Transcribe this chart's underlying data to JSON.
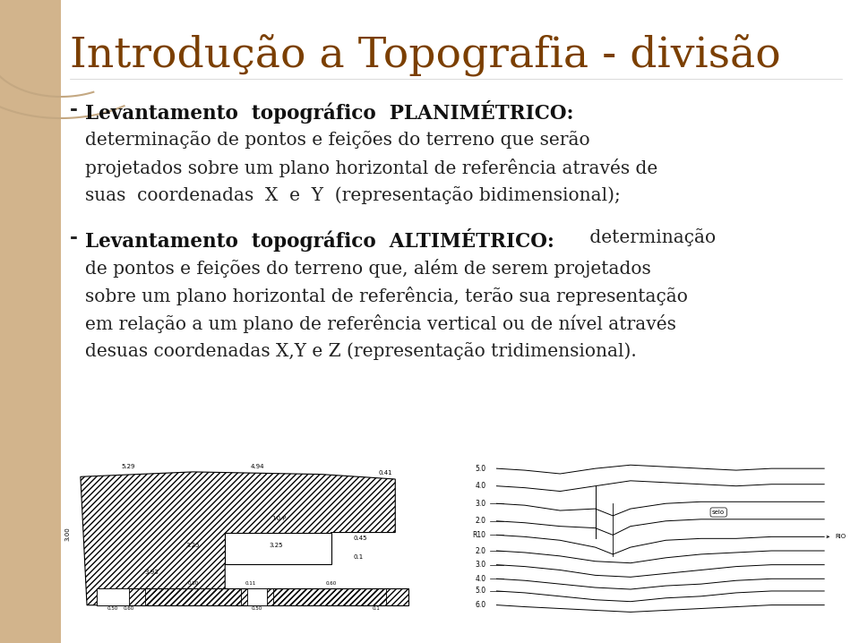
{
  "title": "Introdução a Topografia - divisão",
  "title_color": "#7B3F00",
  "title_fontsize": 34,
  "background_color": "#FFFFFF",
  "left_panel_color": "#D2B48C",
  "text_color": "#222222",
  "text_fontsize": 14.5,
  "bold_color": "#111111",
  "bullet1_bold": "Levantamento  topográfico  PLANIMÉTRICO:",
  "bullet1_line2": "determinação de pontos e feições do terreno que serão",
  "bullet1_line3": "projetados sobre um plano horizontal de referência através de",
  "bullet1_line4": "suas  coordenadas  X  e  Y  (representação bidimensional);",
  "bullet2_bold": "Levantamento  topográfico  ALTIMÉTRICO:",
  "bullet2_after_bold": " determinação",
  "bullet2_line2": "de pontos e feições do terreno que, além de serem projetados",
  "bullet2_line3": "sobre um plano horizontal de referência, terão sua representação",
  "bullet2_line4": "em relação a um plano de referência vertical ou de nível através",
  "bullet2_line5": "desuas coordenadas X,Y e Z (representação tridimensional)."
}
